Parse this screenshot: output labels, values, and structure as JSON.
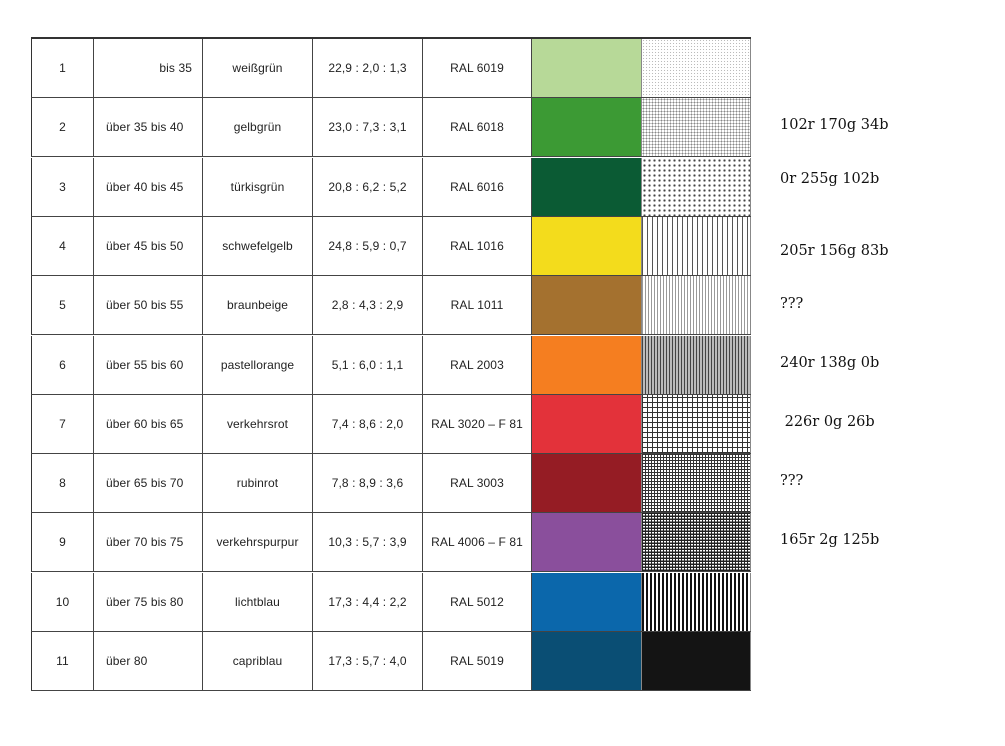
{
  "rows": [
    {
      "num": "1",
      "range": "bis 35",
      "name": "weißgrün",
      "ratio": "22,9 : 2,0 : 1,3",
      "ral": "RAL 6019",
      "color": "#b7d998",
      "pattern": "p1"
    },
    {
      "num": "2",
      "range": "über 35 bis 40",
      "name": "gelbgrün",
      "ratio": "23,0 : 7,3 : 3,1",
      "ral": "RAL 6018",
      "color": "#3c9a34",
      "pattern": "p2"
    },
    {
      "num": "3",
      "range": "über 40 bis 45",
      "name": "türkisgrün",
      "ratio": "20,8 : 6,2 : 5,2",
      "ral": "RAL 6016",
      "color": "#0b5b34",
      "pattern": "p3"
    },
    {
      "num": "4",
      "range": "über 45 bis 50",
      "name": "schwefelgelb",
      "ratio": "24,8 : 5,9 : 0,7",
      "ral": "RAL 1016",
      "color": "#f3dc1c",
      "pattern": "p4"
    },
    {
      "num": "5",
      "range": "über 50 bis 55",
      "name": "braunbeige",
      "ratio": "2,8 : 4,3 : 2,9",
      "ral": "RAL 1011",
      "color": "#a4712f",
      "pattern": "p5"
    },
    {
      "num": "6",
      "range": "über 55 bis 60",
      "name": "pastellorange",
      "ratio": "5,1 : 6,0 : 1,1",
      "ral": "RAL 2003",
      "color": "#f57e20",
      "pattern": "p6"
    },
    {
      "num": "7",
      "range": "über 60 bis 65",
      "name": "verkehrsrot",
      "ratio": "7,4 : 8,6 : 2,0",
      "ral": "RAL 3020 – F 81",
      "color": "#e3323a",
      "pattern": "p7"
    },
    {
      "num": "8",
      "range": "über 65 bis 70",
      "name": "rubinrot",
      "ratio": "7,8 : 8,9 : 3,6",
      "ral": "RAL 3003",
      "color": "#951c24",
      "pattern": "p8"
    },
    {
      "num": "9",
      "range": "über 70 bis 75",
      "name": "verkehrspurpur",
      "ratio": "10,3 : 5,7 : 3,9",
      "ral": "RAL 4006 – F 81",
      "color": "#8a4f9c",
      "pattern": "p9"
    },
    {
      "num": "10",
      "range": "über 75 bis 80",
      "name": "lichtblau",
      "ratio": "17,3 : 4,4 : 2,2",
      "ral": "RAL 5012",
      "color": "#0b67ab",
      "pattern": "p10"
    },
    {
      "num": "11",
      "range": "über 80",
      "name": "capriblau",
      "ratio": "17,3 : 5,7 : 4,0",
      "ral": "RAL 5019",
      "color": "#0a4e74",
      "pattern": "p11"
    }
  ],
  "notes": [
    {
      "text": "102r 170g 34b"
    },
    {
      "text": "0r 255g 102b"
    },
    {
      "text": "205r 156g 83b"
    },
    {
      "text": "???"
    },
    {
      "text": "240r 138g 0b"
    },
    {
      "text": " 226r 0g 26b"
    },
    {
      "text": "???"
    },
    {
      "text": "165r 2g 125b"
    }
  ]
}
